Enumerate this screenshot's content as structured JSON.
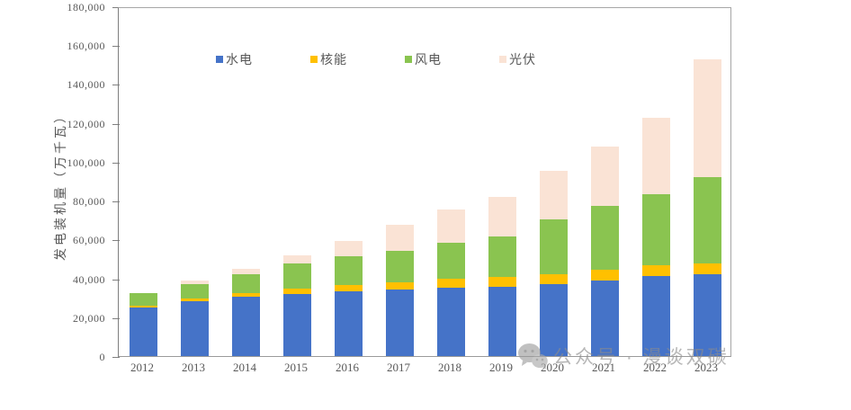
{
  "chart_data": {
    "type": "bar",
    "stacked": true,
    "title": "",
    "xlabel": "",
    "ylabel": "发电装机量（万千瓦）",
    "categories": [
      "2012",
      "2013",
      "2014",
      "2015",
      "2016",
      "2017",
      "2018",
      "2019",
      "2020",
      "2021",
      "2022",
      "2023"
    ],
    "series": [
      {
        "key": "hydro",
        "name": "水电",
        "color": "#4573C8",
        "values": [
          24890,
          28044,
          30486,
          31954,
          33211,
          34411,
          35259,
          35804,
          37016,
          39092,
          41350,
          42154
        ]
      },
      {
        "key": "nuclear",
        "name": "核能",
        "color": "#FFC000",
        "values": [
          1257,
          1466,
          2008,
          2717,
          3364,
          3582,
          4466,
          4874,
          4989,
          5326,
          5553,
          5691
        ]
      },
      {
        "key": "wind",
        "name": "风电",
        "color": "#8AC450",
        "values": [
          6083,
          7652,
          9657,
          13075,
          14864,
          16367,
          18427,
          20915,
          28153,
          32848,
          36544,
          44134
        ]
      },
      {
        "key": "solar",
        "name": "光伏",
        "color": "#FAE3D5",
        "values": [
          341,
          1589,
          2805,
          4318,
          7742,
          13025,
          17463,
          20468,
          25343,
          30656,
          39261,
          60949
        ]
      }
    ],
    "ylim": [
      0,
      180000
    ],
    "ytick_interval": 20000,
    "ytick_labels": [
      "0",
      "20,000",
      "40,000",
      "60,000",
      "80,000",
      "100,000",
      "120,000",
      "140,000",
      "160,000",
      "180,000"
    ],
    "grid": false,
    "legend_position": "top-inside-horizontal"
  },
  "watermark": {
    "icon": "wechat-icon",
    "text": "公众号 · 漫谈双碳"
  }
}
